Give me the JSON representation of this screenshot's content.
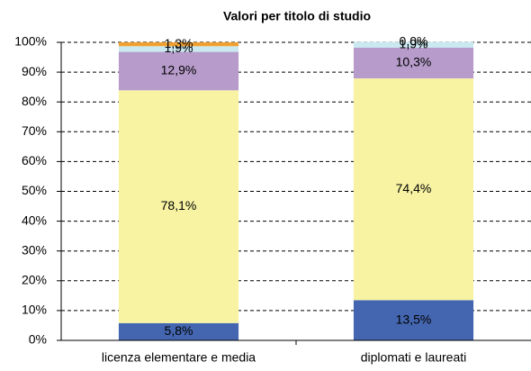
{
  "chart_data": {
    "type": "stacked_bar",
    "title": "Valori per titolo di studio",
    "categories": [
      "licenza elementare e media",
      "diplomati e laureati"
    ],
    "series": [
      {
        "color": "#4466b0",
        "values": [
          5.8,
          13.5
        ],
        "value_labels": [
          "5,8%",
          "13,5%"
        ]
      },
      {
        "color": "#f7f3a3",
        "values": [
          78.1,
          74.4
        ],
        "value_labels": [
          "78,1%",
          "74,4%"
        ]
      },
      {
        "color": "#b79ccb",
        "values": [
          12.9,
          10.3
        ],
        "value_labels": [
          "12,9%",
          "10,3%"
        ]
      },
      {
        "color": "#c9e8f0",
        "values": [
          1.9,
          1.9
        ],
        "value_labels": [
          "1,9%",
          "1,9%"
        ]
      },
      {
        "color": "#f0a030",
        "values": [
          1.3,
          0.0
        ],
        "value_labels": [
          "1,3%",
          "0,0%"
        ]
      }
    ],
    "ylim": [
      0,
      100
    ],
    "yticks": [
      {
        "value": 0,
        "label": "0%"
      },
      {
        "value": 10,
        "label": "10%"
      },
      {
        "value": 20,
        "label": "20%"
      },
      {
        "value": 30,
        "label": "30%"
      },
      {
        "value": 40,
        "label": "40%"
      },
      {
        "value": 50,
        "label": "50%"
      },
      {
        "value": 60,
        "label": "60%"
      },
      {
        "value": 70,
        "label": "70%"
      },
      {
        "value": 80,
        "label": "80%"
      },
      {
        "value": 90,
        "label": "90%"
      },
      {
        "value": 100,
        "label": "100%"
      }
    ],
    "grid": true
  }
}
